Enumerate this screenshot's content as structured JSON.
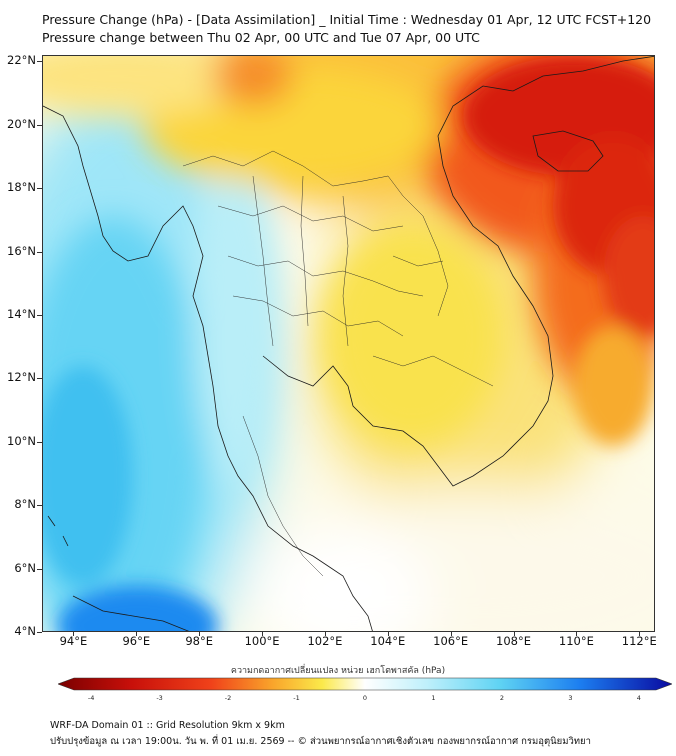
{
  "header": {
    "title_line1": "Pressure Change (hPa) - [Data Assimilation] _ Initial Time : Wednesday 01 Apr, 12 UTC FCST+120",
    "title_line2": "Pressure change between Thu 02 Apr, 00 UTC and Tue 07 Apr, 00 UTC"
  },
  "map": {
    "lon_range": [
      93,
      112.5
    ],
    "lat_range": [
      4,
      22.2
    ],
    "lat_labels": [
      "22°N",
      "20°N",
      "18°N",
      "16°N",
      "14°N",
      "12°N",
      "10°N",
      "8°N",
      "6°N",
      "4°N"
    ],
    "lat_values": [
      22,
      20,
      18,
      16,
      14,
      12,
      10,
      8,
      6,
      4
    ],
    "lon_labels": [
      "94°E",
      "96°E",
      "98°E",
      "100°E",
      "102°E",
      "104°E",
      "106°E",
      "108°E",
      "110°E",
      "112°E"
    ],
    "lon_values": [
      94,
      96,
      98,
      100,
      102,
      104,
      106,
      108,
      110,
      112
    ]
  },
  "colorbar": {
    "title": "ความกดอากาศเปลี่ยนแปลง หน่วย เฮกโตพาสคัล (hPa)",
    "tick_labels": [
      "-4",
      "-3",
      "-2",
      "-1",
      "0",
      "1",
      "2",
      "3",
      "4"
    ],
    "tick_values": [
      -4,
      -3,
      -2,
      -1,
      0,
      1,
      2,
      3,
      4
    ],
    "range": [
      -4.25,
      4.25
    ],
    "colors": {
      "dark_red": "#7a0000",
      "red": "#e8160b",
      "orange": "#f97c1c",
      "yellow": "#f8df2e",
      "light_yellow": "#fcf19c",
      "white": "#ffffff",
      "light_cyan": "#c8f2fa",
      "cyan": "#5fd3f3",
      "blue": "#1c7ef0",
      "dark_blue": "#0a0aa0"
    }
  },
  "footer": {
    "line1": "WRF-DA Domain 01 :: Grid Resolution 9km x 9km",
    "line2": "ปรับปรุงข้อมูล ณ เวลา 19:00น. วัน พ. ที่ 01 เม.ย. 2569 -- © ส่วนพยากรณ์อากาศเชิงตัวเลข กองพยากรณ์อากาศ กรมอุตุนิยมวิทยา"
  }
}
